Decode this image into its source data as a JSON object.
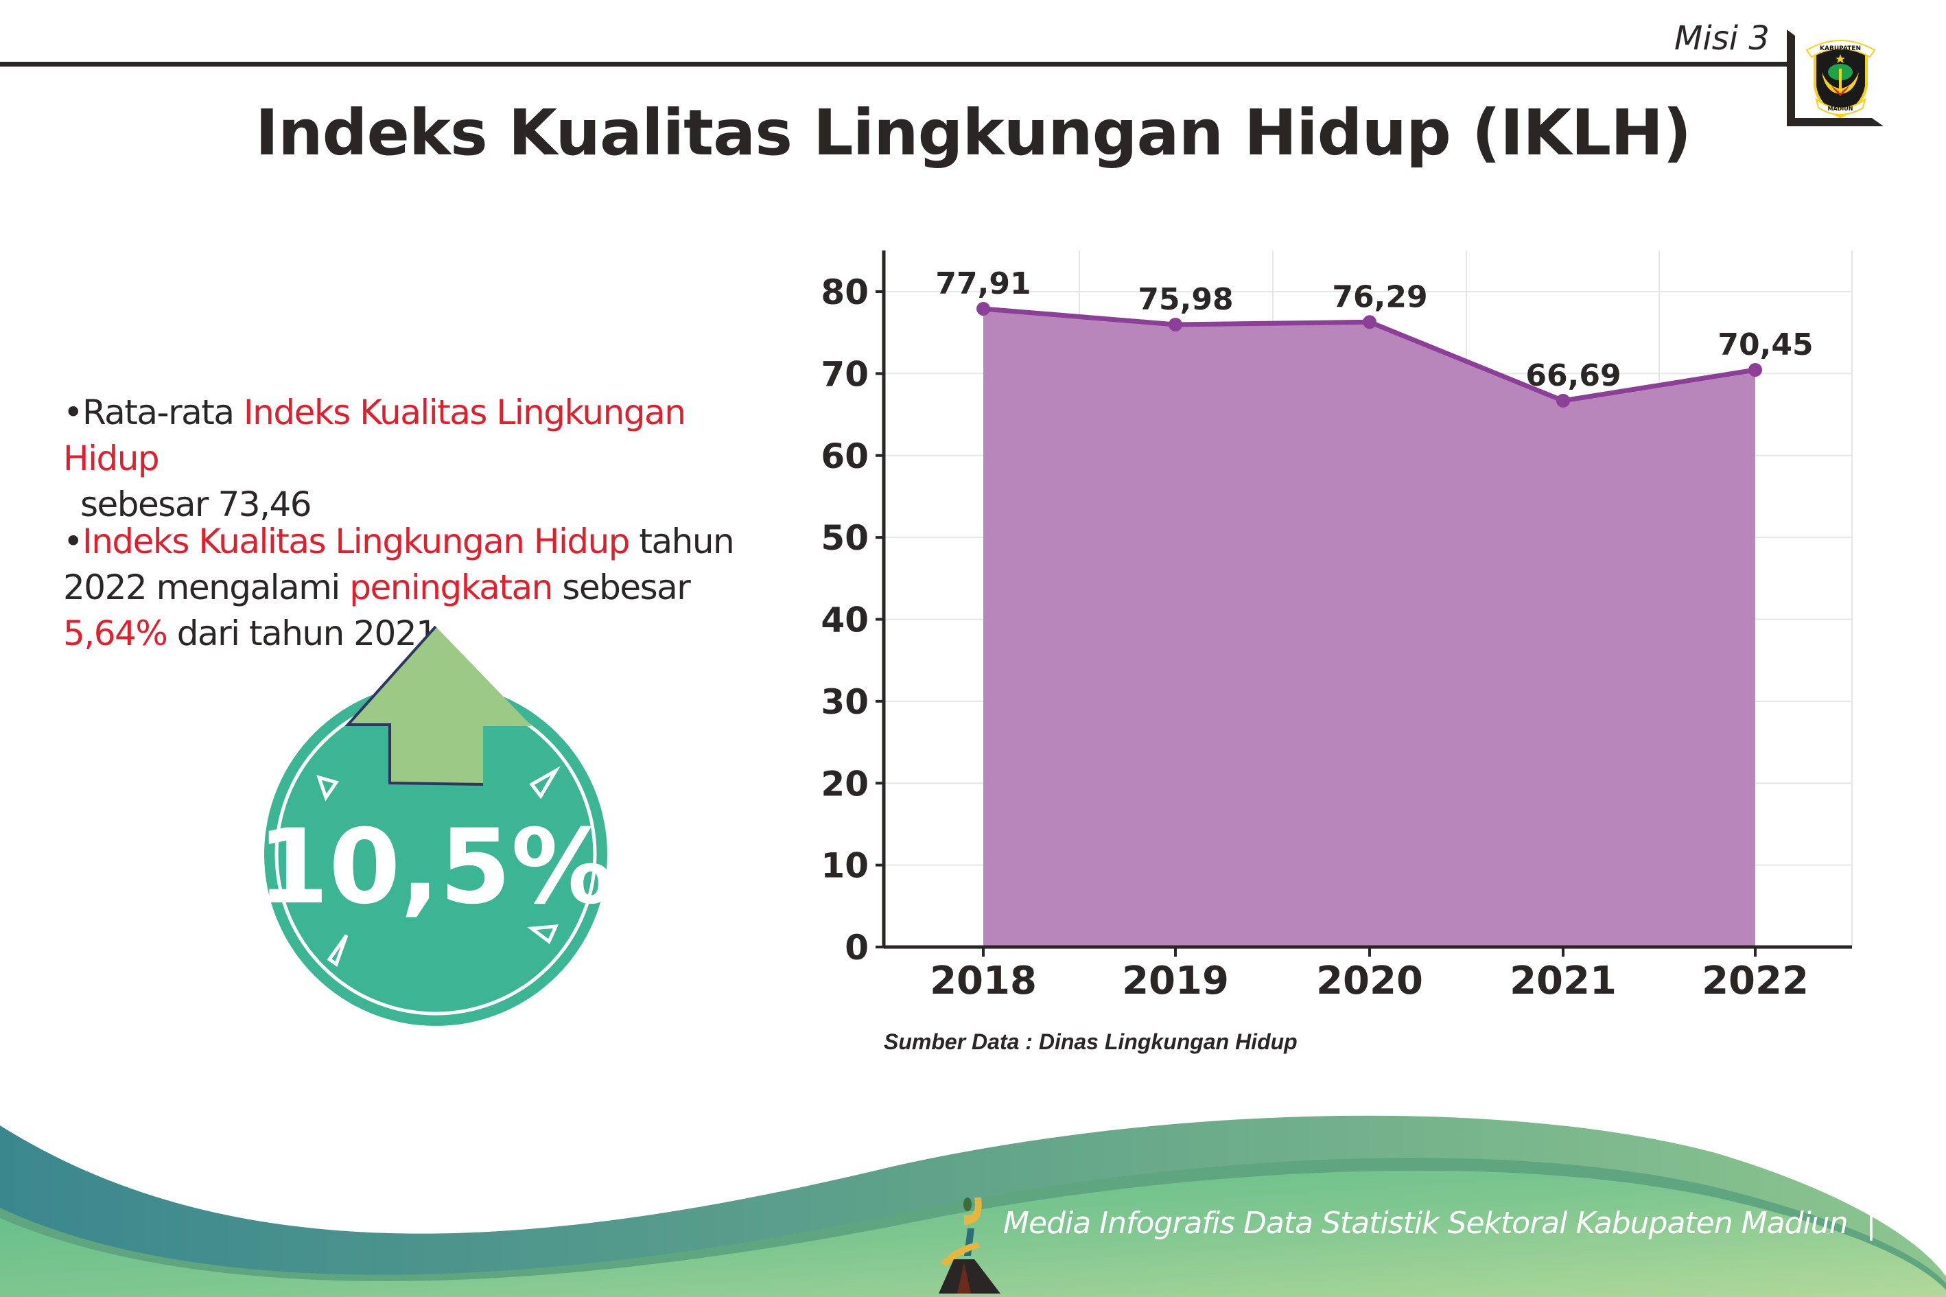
{
  "header": {
    "mission_label": "Misi 3",
    "logo_text_top": "KABUPATEN",
    "logo_text_bottom": "MADIUN",
    "title": "Indeks Kualitas Lingkungan Hidup (IKLH)"
  },
  "summary": {
    "bullet1": {
      "prefix": "Rata-rata ",
      "highlight": "Indeks Kualitas Lingkungan Hidup",
      "suffix": " sebesar 73,46"
    },
    "bullet2": {
      "highlight1": "Indeks Kualitas Lingkungan Hidup",
      "text1": " tahun 2022 mengalami ",
      "highlight2": "peningkatan",
      "text2": " sebesar ",
      "highlight3": "5,64%",
      "text3": " dari tahun 2021"
    },
    "badge_value": "10,5%",
    "badge_icon": "arrow-up-icon"
  },
  "colors": {
    "highlight": "#e11e2b",
    "area_fill": "#b784b9",
    "line": "#8b3f96",
    "badge": "#3bb594",
    "arrow": "#9cc986"
  },
  "chart_data": {
    "type": "area",
    "categories": [
      "2018",
      "2019",
      "2020",
      "2021",
      "2022"
    ],
    "values": [
      77.91,
      75.98,
      76.29,
      66.69,
      70.45
    ],
    "data_labels": [
      "77,91",
      "75,98",
      "76,29",
      "66,69",
      "70,45"
    ],
    "yticks": [
      0,
      10,
      20,
      30,
      40,
      50,
      60,
      70,
      80
    ],
    "ylim": [
      0,
      85
    ],
    "grid": true,
    "title": "",
    "xlabel": "",
    "ylabel": ""
  },
  "source": "Sumber Data : Dinas Lingkungan Hidup",
  "footer": {
    "text": "Media Infografis Data Statistik Sektoral Kabupaten Madiun",
    "separator": "|"
  }
}
